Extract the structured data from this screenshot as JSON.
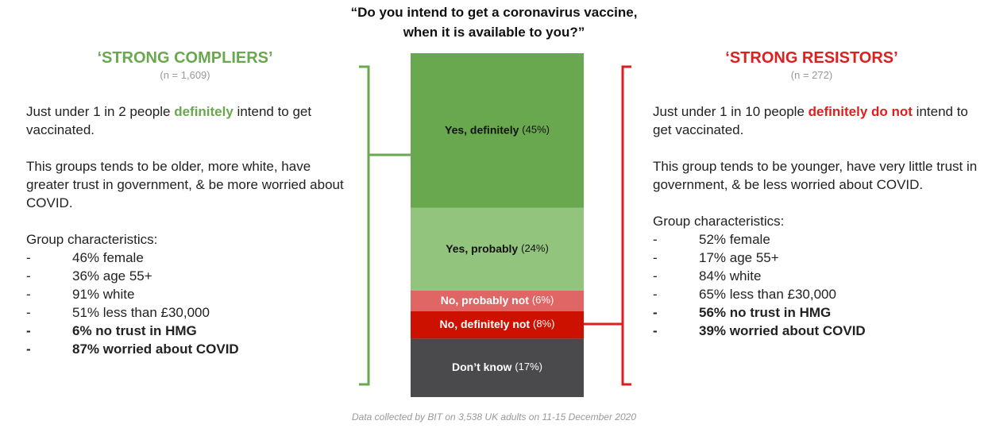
{
  "chart_data": {
    "type": "stacked_bar",
    "title": [
      "“Do you intend to get a coronavirus vaccine,",
      "when it is available to you?”"
    ],
    "categories": [
      null
    ],
    "ylim": [
      0,
      100
    ],
    "series": [
      {
        "name": "Yes, definitely",
        "color": "#6aa84f",
        "label_color": "#111111",
        "values": [
          45
        ],
        "value_labels": [
          "(45%)"
        ]
      },
      {
        "name": "Yes, probably",
        "color": "#93c47d",
        "label_color": "#111111",
        "values": [
          24
        ],
        "value_labels": [
          "(24%)"
        ]
      },
      {
        "name": "No, probably not",
        "color": "#e06666",
        "label_color": "#ffffff",
        "values": [
          6
        ],
        "value_labels": [
          "(6%)"
        ]
      },
      {
        "name": "No, definitely not",
        "color": "#cc1100",
        "label_color": "#ffffff",
        "values": [
          8
        ],
        "value_labels": [
          "(8%)"
        ]
      },
      {
        "name": "Don’t know",
        "color": "#4a4a4d",
        "label_color": "#ffffff",
        "values": [
          17
        ],
        "value_labels": [
          "(17%)"
        ]
      }
    ],
    "note": "Data collected by BIT on 3,538 UK adults on 11-15 December 2020"
  },
  "left_panel": {
    "title": "‘STRONG COMPLIERS’",
    "n": "(n = 1,609)",
    "color": "#6aa84f",
    "paragraphs": [
      [
        {
          "text": "Just under 1 in 2 people "
        },
        {
          "text": "definitely",
          "emphasis": true
        },
        {
          "text": " intend to get vaccinated."
        }
      ],
      [
        {
          "text": "This groups tends to be older, more white, have greater trust in government, & be more worried about COVID."
        }
      ],
      [
        {
          "text": "Group characteristics:"
        }
      ]
    ],
    "items": [
      {
        "text": "46% female"
      },
      {
        "text": "36% age 55+"
      },
      {
        "text": "91% white"
      },
      {
        "text": "51% less than £30,000"
      },
      {
        "text": "6% no trust in HMG",
        "bold": true
      },
      {
        "text": "87% worried about COVID",
        "bold": true
      }
    ]
  },
  "right_panel": {
    "title": "‘STRONG RESISTORS’",
    "n": "(n = 272)",
    "color": "#dd1f1f",
    "paragraphs": [
      [
        {
          "text": "Just under 1 in 10 people "
        },
        {
          "text": "definitely do not",
          "emphasis": true
        },
        {
          "text": " intend to get vaccinated."
        }
      ],
      [
        {
          "text": "This group tends to be younger, have very little trust in government, & be less worried about COVID."
        }
      ],
      [
        {
          "text": "Group characteristics:"
        }
      ]
    ],
    "items": [
      {
        "text": "52% female"
      },
      {
        "text": "17% age 55+"
      },
      {
        "text": "84% white"
      },
      {
        "text": "65% less than £30,000"
      },
      {
        "text": "56% no trust in HMG",
        "bold": true
      },
      {
        "text": "39% worried about COVID",
        "bold": true
      }
    ]
  }
}
